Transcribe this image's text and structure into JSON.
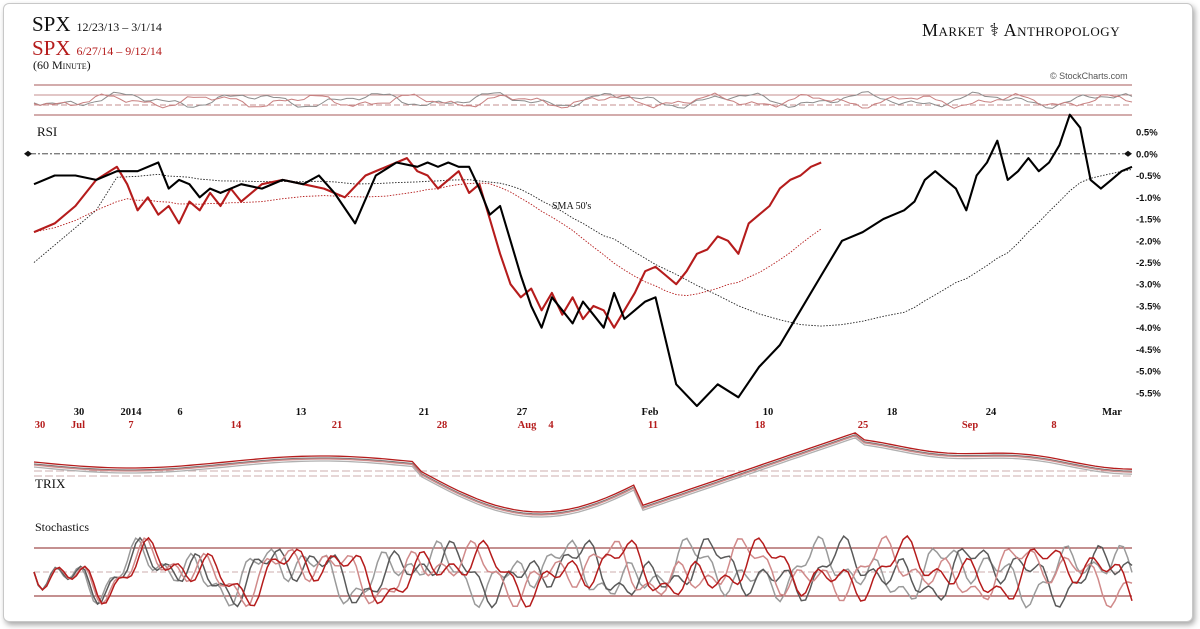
{
  "header": {
    "title1": "SPX",
    "title1_sub": "12/23/13 – 3/1/14",
    "title2": "SPX",
    "title2_sub": "6/27/14 – 9/12/14",
    "frequency": "(60 Minute)",
    "brand": "Market ⚕ Anthropology",
    "copyright": "© StockCharts.com"
  },
  "labels": {
    "rsi": "RSI",
    "trix": "TRIX",
    "stochastics": "Stochastics",
    "sma": "SMA 50's"
  },
  "colors": {
    "black_series": "#000000",
    "red_series": "#b51c1c",
    "grid_line": "#8a2020"
  },
  "chart_data": [
    {
      "type": "line",
      "panel": "RSI",
      "overbought": 70,
      "oversold": 30
    },
    {
      "type": "line",
      "panel": "main",
      "title": "SPX",
      "ylabel": "",
      "ylim": [
        -5.8,
        0.8
      ],
      "yticks": [
        0.5,
        0.0,
        -0.5,
        -1.0,
        -1.5,
        -2.0,
        -2.5,
        -3.0,
        -3.5,
        -4.0,
        -4.5,
        -5.0,
        -5.5
      ],
      "ytick_labels": [
        "0.5%",
        "0.0%",
        "-0.5%",
        "-1.0%",
        "-1.5%",
        "-2.0%",
        "-2.5%",
        "-3.0%",
        "-3.5%",
        "-4.0%",
        "-4.5%",
        "-5.0%",
        "-5.5%"
      ],
      "x_labels_black": [
        "30",
        "2014",
        "6",
        "13",
        "21",
        "27",
        "Feb",
        "10",
        "18",
        "24",
        "Mar"
      ],
      "x_labels_red": [
        "30",
        "Jul",
        "7",
        "14",
        "21",
        "28",
        "Aug",
        "4",
        "11",
        "18",
        "25",
        "Sep",
        "8"
      ],
      "series": [
        {
          "name": "SPX 12/23/13 – 3/1/14",
          "color": "#000000",
          "x": [
            0,
            4,
            8,
            12,
            16,
            20,
            24,
            26,
            28,
            30,
            32,
            34,
            36,
            40,
            44,
            48,
            52,
            55,
            58,
            62,
            66,
            70,
            74,
            76,
            78,
            80,
            82,
            84,
            86,
            88,
            90,
            92,
            94,
            96,
            98,
            100,
            102,
            104,
            106,
            108,
            110,
            112,
            114,
            116,
            118,
            120,
            124,
            128,
            132,
            136,
            140,
            144,
            148,
            152,
            156,
            160,
            164,
            168,
            170,
            172,
            174,
            176,
            178,
            180,
            182,
            184,
            186,
            188,
            190,
            192,
            194,
            196,
            198,
            200,
            202,
            204,
            206,
            208,
            210,
            212
          ],
          "y": [
            -0.7,
            -0.5,
            -0.5,
            -0.6,
            -0.4,
            -0.4,
            -0.2,
            -0.8,
            -0.6,
            -0.7,
            -1.0,
            -0.8,
            -0.9,
            -0.7,
            -0.8,
            -0.6,
            -0.7,
            -0.5,
            -0.9,
            -1.6,
            -0.5,
            -0.2,
            -0.3,
            -0.2,
            -0.3,
            -0.2,
            -0.3,
            -0.3,
            -0.8,
            -1.4,
            -1.2,
            -2.0,
            -2.8,
            -3.5,
            -4.0,
            -3.3,
            -3.6,
            -3.9,
            -3.4,
            -3.7,
            -4.0,
            -3.2,
            -3.8,
            -3.6,
            -3.4,
            -3.3,
            -5.3,
            -5.8,
            -5.3,
            -5.6,
            -4.9,
            -4.4,
            -3.6,
            -2.8,
            -2.0,
            -1.8,
            -1.5,
            -1.3,
            -1.1,
            -0.6,
            -0.4,
            -0.6,
            -0.8,
            -1.3,
            -0.5,
            -0.2,
            0.3,
            -0.6,
            -0.4,
            -0.1,
            -0.4,
            -0.2,
            0.2,
            0.9,
            0.6,
            -0.6,
            -0.8,
            -0.6,
            -0.4,
            -0.3
          ]
        },
        {
          "name": "SPX 6/27/14 – 9/12/14",
          "color": "#b51c1c",
          "x": [
            0,
            4,
            8,
            12,
            16,
            18,
            20,
            22,
            24,
            26,
            28,
            30,
            32,
            34,
            36,
            38,
            40,
            44,
            48,
            52,
            56,
            60,
            64,
            68,
            72,
            74,
            76,
            78,
            80,
            82,
            84,
            86,
            88,
            90,
            92,
            94,
            96,
            98,
            100,
            102,
            104,
            106,
            108,
            110,
            112,
            114,
            116,
            118,
            120,
            122,
            124,
            126,
            128,
            130,
            132,
            134,
            136,
            138,
            140,
            142,
            144,
            146,
            148,
            150,
            152
          ],
          "y": [
            -1.8,
            -1.6,
            -1.2,
            -0.6,
            -0.3,
            -0.7,
            -1.3,
            -1.0,
            -1.4,
            -1.2,
            -1.6,
            -1.1,
            -1.3,
            -0.9,
            -1.2,
            -0.8,
            -1.1,
            -0.7,
            -0.6,
            -0.7,
            -0.8,
            -1.0,
            -0.5,
            -0.3,
            -0.1,
            -0.4,
            -0.5,
            -0.8,
            -0.6,
            -0.4,
            -0.9,
            -0.7,
            -1.5,
            -2.3,
            -3.0,
            -3.3,
            -3.1,
            -3.6,
            -3.2,
            -3.7,
            -3.3,
            -3.8,
            -3.5,
            -3.6,
            -4.0,
            -3.6,
            -3.2,
            -2.7,
            -2.6,
            -2.8,
            -3.0,
            -2.7,
            -2.3,
            -2.2,
            -1.9,
            -2.0,
            -2.3,
            -1.6,
            -1.4,
            -1.2,
            -0.8,
            -0.6,
            -0.5,
            -0.3,
            -0.2
          ]
        }
      ]
    },
    {
      "type": "line",
      "panel": "TRIX"
    },
    {
      "type": "line",
      "panel": "Stochastics",
      "overbought": 80,
      "oversold": 20
    }
  ]
}
